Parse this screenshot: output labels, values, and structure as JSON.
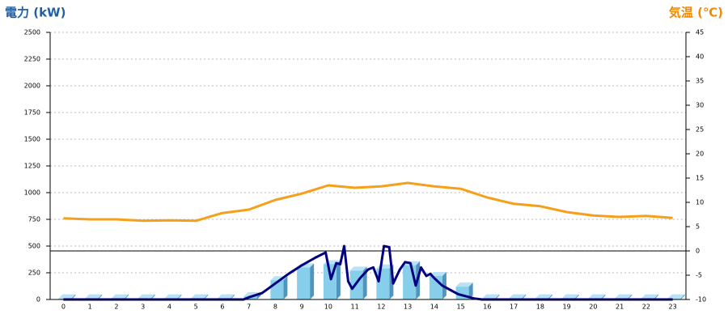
{
  "chart_data": {
    "type": "bar",
    "ylabel": "電力 (kW)",
    "y2label": "気温 (℃)",
    "categories": [
      "0",
      "1",
      "2",
      "3",
      "4",
      "5",
      "6",
      "7",
      "8",
      "9",
      "10",
      "11",
      "12",
      "13",
      "14",
      "15",
      "16",
      "17",
      "18",
      "19",
      "20",
      "21",
      "22",
      "23"
    ],
    "xlim": [
      -0.5,
      23.5
    ],
    "ylim": [
      0,
      2500
    ],
    "yticks": [
      0,
      250,
      500,
      750,
      1000,
      1250,
      1500,
      1750,
      2000,
      2250,
      2500
    ],
    "y2lim": [
      -10,
      45
    ],
    "y2ticks": [
      -10,
      -5,
      0,
      5,
      10,
      15,
      20,
      25,
      30,
      35,
      40,
      45
    ],
    "grid": true,
    "series": [
      {
        "type": "bar",
        "color": "#87ceeb",
        "values": [
          10,
          10,
          10,
          10,
          10,
          10,
          10,
          30,
          180,
          300,
          330,
          270,
          290,
          320,
          220,
          120,
          10,
          10,
          10,
          10,
          10,
          10,
          10,
          10
        ]
      },
      {
        "type": "line",
        "axis": "y2",
        "color": "#f5a01a",
        "values": [
          6.7,
          6.5,
          6.5,
          6.2,
          6.3,
          6.2,
          7.8,
          8.5,
          10.5,
          11.8,
          13.5,
          13,
          13.3,
          14,
          13.3,
          12.8,
          11,
          9.7,
          9.2,
          8,
          7.3,
          7,
          7.2,
          6.8
        ]
      },
      {
        "type": "line",
        "color": "#000080",
        "x": [
          0,
          6.8,
          7,
          7.5,
          8,
          8.5,
          9,
          9.5,
          9.9,
          10.1,
          10.3,
          10.45,
          10.6,
          10.75,
          10.9,
          11.2,
          11.5,
          11.7,
          11.9,
          12.1,
          12.3,
          12.45,
          12.7,
          12.9,
          13.1,
          13.3,
          13.5,
          13.7,
          13.85,
          14,
          14.3,
          14.6,
          14.9,
          15.2,
          15.5,
          15.8,
          23
        ],
        "values": [
          0,
          0,
          20,
          60,
          150,
          240,
          320,
          390,
          440,
          190,
          340,
          330,
          500,
          170,
          100,
          200,
          280,
          300,
          170,
          500,
          490,
          150,
          280,
          350,
          340,
          130,
          300,
          220,
          240,
          200,
          130,
          90,
          50,
          30,
          10,
          0,
          0
        ]
      }
    ]
  }
}
